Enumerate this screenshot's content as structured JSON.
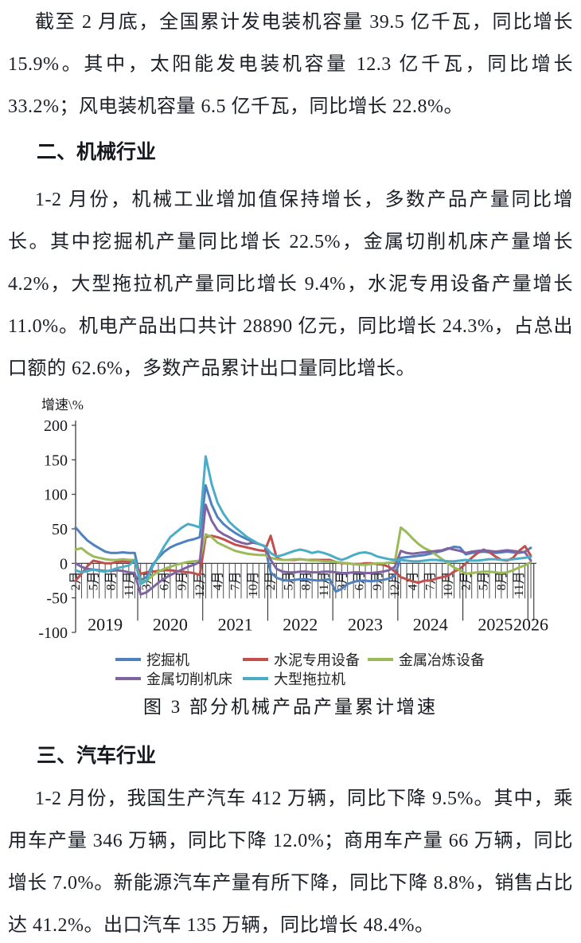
{
  "document": {
    "paragraph_power": "截至 2 月底，全国累计发电装机容量 39.5 亿千瓦，同比增长 15.9%。其中，太阳能发电装机容量 12.3 亿千瓦，同比增长 33.2%；风电装机容量 6.5 亿千瓦，同比增长 22.8%。",
    "heading_machinery": "二、机械行业",
    "paragraph_machinery": "1-2 月份，机械工业增加值保持增长，多数产品产量同比增长。其中挖掘机产量同比增长 22.5%，金属切削机床产量增长 4.2%，大型拖拉机产量同比增长 9.4%，水泥专用设备产量增长 11.0%。机电产品出口共计 28890 亿元，同比增长 24.3%，占总出口额的 62.6%，多数产品累计出口量同比增长。",
    "figure_caption": "图 3 部分机械产品产量累计增速",
    "heading_auto": "三、汽车行业",
    "paragraph_auto": "1-2 月份，我国生产汽车 412 万辆，同比下降 9.5%。其中，乘用车产量 346 万辆，同比下降 12.0%；商用车产量 66 万辆，同比增长 7.0%。新能源汽车产量有所下降，同比下降 8.8%，销售占比达 41.2%。出口汽车 135 万辆，同比增长 48.4%。"
  },
  "chart_data": {
    "type": "line",
    "title": "图 3 部分机械产品产量累计增速",
    "ylabel": "增速\\%",
    "ylim": [
      -100,
      200
    ],
    "yticks": [
      200,
      150,
      100,
      50,
      0,
      -50,
      -100
    ],
    "grid": "zero-line-only",
    "legend_position": "bottom",
    "tick_indices": [
      0,
      3,
      6,
      9,
      12,
      15,
      18,
      21,
      24,
      27,
      30,
      33,
      36,
      39,
      42,
      45,
      48,
      51,
      54,
      57,
      60,
      63,
      66,
      69,
      72,
      75
    ],
    "tick_labels": [
      "2月",
      "5月",
      "8月",
      "11月",
      "3月",
      "6月",
      "9月",
      "12月",
      "4月",
      "7月",
      "10月",
      "2月",
      "5月",
      "8月",
      "11月",
      "3月",
      "6月",
      "9月",
      "12月",
      "4月",
      "7月",
      "10月",
      "2月",
      "5月",
      "8月",
      "11月"
    ],
    "years": [
      {
        "label": "2019",
        "center_index": 5
      },
      {
        "label": "2020",
        "center_index": 16
      },
      {
        "label": "2021",
        "center_index": 27
      },
      {
        "label": "2022",
        "center_index": 38
      },
      {
        "label": "2023",
        "center_index": 49
      },
      {
        "label": "2024",
        "center_index": 60
      },
      {
        "label": "2025",
        "center_index": 71
      },
      {
        "label": "2026",
        "center_index": 77
      }
    ],
    "year_separator_indices": [
      10.5,
      21.5,
      32.5,
      43.5,
      54.5,
      65.5,
      76.5,
      77.5
    ],
    "series": [
      {
        "name": "挖掘机",
        "key": "excavator",
        "color": "#4F81BD",
        "values": [
          52,
          42,
          33,
          27,
          22,
          17,
          15,
          15,
          16,
          15,
          15,
          -24,
          -20,
          -2,
          8,
          17,
          23,
          27,
          30,
          33,
          35,
          38,
          113,
          85,
          67,
          57,
          50,
          44,
          39,
          35,
          31,
          28,
          25,
          -13,
          -21,
          -24,
          -25,
          -24,
          -23,
          -23,
          -24,
          -25,
          -24,
          -23,
          -41,
          -37,
          -30,
          -27,
          -25,
          -25,
          -26,
          -25,
          -24,
          -22,
          -18,
          8,
          9,
          10,
          11,
          12,
          14,
          16,
          18,
          21,
          24,
          23,
          13,
          15,
          16,
          17,
          16,
          15,
          16,
          17,
          16,
          15,
          17,
          22.5
        ]
      },
      {
        "name": "水泥专用设备",
        "key": "cement-equipment",
        "color": "#C0504D",
        "values": [
          -25,
          -15,
          -4,
          4,
          2,
          0,
          0,
          2,
          3,
          2,
          2,
          -15,
          -13,
          -12,
          -11,
          -10,
          -10,
          -11,
          -12,
          -13,
          -14,
          -17,
          38,
          40,
          38,
          35,
          31,
          27,
          25,
          23,
          21,
          19,
          18,
          40,
          8,
          5,
          5,
          5,
          6,
          5,
          5,
          5,
          5,
          5,
          2,
          0,
          0,
          -1,
          -1,
          0,
          0,
          -1,
          -2,
          -5,
          -12,
          -20,
          -23,
          -26,
          -28,
          -25,
          -25,
          -22,
          -20,
          -18,
          -12,
          -8,
          0,
          8,
          15,
          20,
          16,
          10,
          5,
          4,
          8,
          18,
          25,
          11
        ]
      },
      {
        "name": "金属冶炼设备",
        "key": "metal-smelting-equipment",
        "color": "#9BBB59",
        "values": [
          20,
          22,
          15,
          10,
          8,
          6,
          5,
          5,
          6,
          5,
          5,
          -27,
          -25,
          -18,
          -12,
          -8,
          -5,
          -2,
          0,
          2,
          3,
          4,
          42,
          38,
          30,
          26,
          22,
          18,
          16,
          14,
          13,
          12,
          12,
          8,
          6,
          5,
          5,
          6,
          6,
          5,
          4,
          4,
          3,
          3,
          2,
          1,
          0,
          -1,
          -2,
          -2,
          -1,
          0,
          0,
          1,
          2,
          52,
          45,
          36,
          28,
          22,
          18,
          12,
          6,
          0,
          -6,
          -10,
          -15,
          -14,
          -13,
          -12,
          -12,
          -13,
          -14,
          -13,
          -10,
          -6,
          -3,
          2
        ]
      },
      {
        "name": "金属切削机床",
        "key": "metal-cutting-machine-tools",
        "color": "#8064A2",
        "values": [
          0,
          -5,
          -8,
          -9,
          -10,
          -11,
          -11,
          -10,
          -11,
          -13,
          -14,
          -45,
          -42,
          -35,
          -28,
          -22,
          -17,
          -13,
          -9,
          -5,
          -2,
          2,
          85,
          62,
          48,
          42,
          38,
          33,
          30,
          28,
          30,
          28,
          25,
          5,
          -8,
          -12,
          -13,
          -13,
          -12,
          -12,
          -13,
          -13,
          -12,
          -12,
          -13,
          -14,
          -14,
          -13,
          -13,
          -14,
          -14,
          -13,
          -12,
          -10,
          -5,
          18,
          15,
          14,
          15,
          16,
          17,
          18,
          19,
          22,
          20,
          18,
          15,
          17,
          18,
          19,
          18,
          17,
          18,
          19,
          18,
          17,
          16,
          4.2
        ]
      },
      {
        "name": "大型拖拉机",
        "key": "large-tractor",
        "color": "#4BACC6",
        "values": [
          -10,
          -13,
          -11,
          -9,
          -11,
          -12,
          -10,
          -7,
          -5,
          -3,
          5,
          -30,
          -25,
          -5,
          10,
          25,
          38,
          45,
          52,
          57,
          55,
          52,
          155,
          115,
          88,
          72,
          60,
          52,
          45,
          38,
          33,
          28,
          25,
          15,
          10,
          12,
          15,
          18,
          20,
          18,
          15,
          17,
          15,
          12,
          8,
          5,
          8,
          12,
          15,
          16,
          14,
          10,
          8,
          6,
          5,
          5,
          4,
          3,
          3,
          4,
          5,
          5,
          4,
          3,
          3,
          4,
          5,
          4,
          4,
          5,
          6,
          6,
          5,
          5,
          6,
          7,
          8,
          9.4
        ]
      }
    ],
    "legend_rows": [
      [
        "挖掘机",
        "水泥专用设备",
        "金属冶炼设备"
      ],
      [
        "金属切削机床",
        "大型拖拉机"
      ]
    ]
  }
}
